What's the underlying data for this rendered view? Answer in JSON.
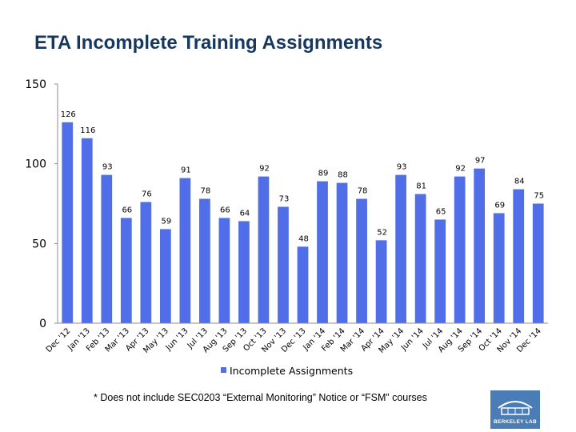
{
  "title": "ETA Incomplete Training Assignments",
  "footnote": "* Does not include SEC0203 “External Monitoring” Notice or “FSM” courses",
  "logo": {
    "text": "BERKELEY LAB",
    "icon": "berkeley-lab-logo-icon",
    "color": "#4a7db5"
  },
  "chart_data": {
    "type": "bar",
    "title": "",
    "xlabel": "",
    "ylabel": "",
    "ylim": [
      0,
      150
    ],
    "yticks": [
      0,
      50,
      100,
      150
    ],
    "grid": false,
    "legend_position": "bottom",
    "categories": [
      "Dec '12",
      "Jan '13",
      "Feb '13",
      "Mar '13",
      "Apr '13",
      "May '13",
      "Jun '13",
      "Jul '13",
      "Aug '13",
      "Sep '13",
      "Oct '13",
      "Nov '13",
      "Dec '13",
      "Jan '14",
      "Feb '14",
      "Mar '14",
      "Apr '14",
      "May '14",
      "Jun '14",
      "Jul '14",
      "Aug '14",
      "Sep '14",
      "Oct '14",
      "Nov '14",
      "Dec '14"
    ],
    "series": [
      {
        "name": "Incomplete Assignments",
        "color": "#4f6ee8",
        "values": [
          126,
          116,
          93,
          66,
          76,
          59,
          91,
          78,
          66,
          64,
          92,
          73,
          48,
          89,
          88,
          78,
          52,
          93,
          81,
          65,
          92,
          97,
          69,
          84,
          75
        ]
      }
    ]
  }
}
